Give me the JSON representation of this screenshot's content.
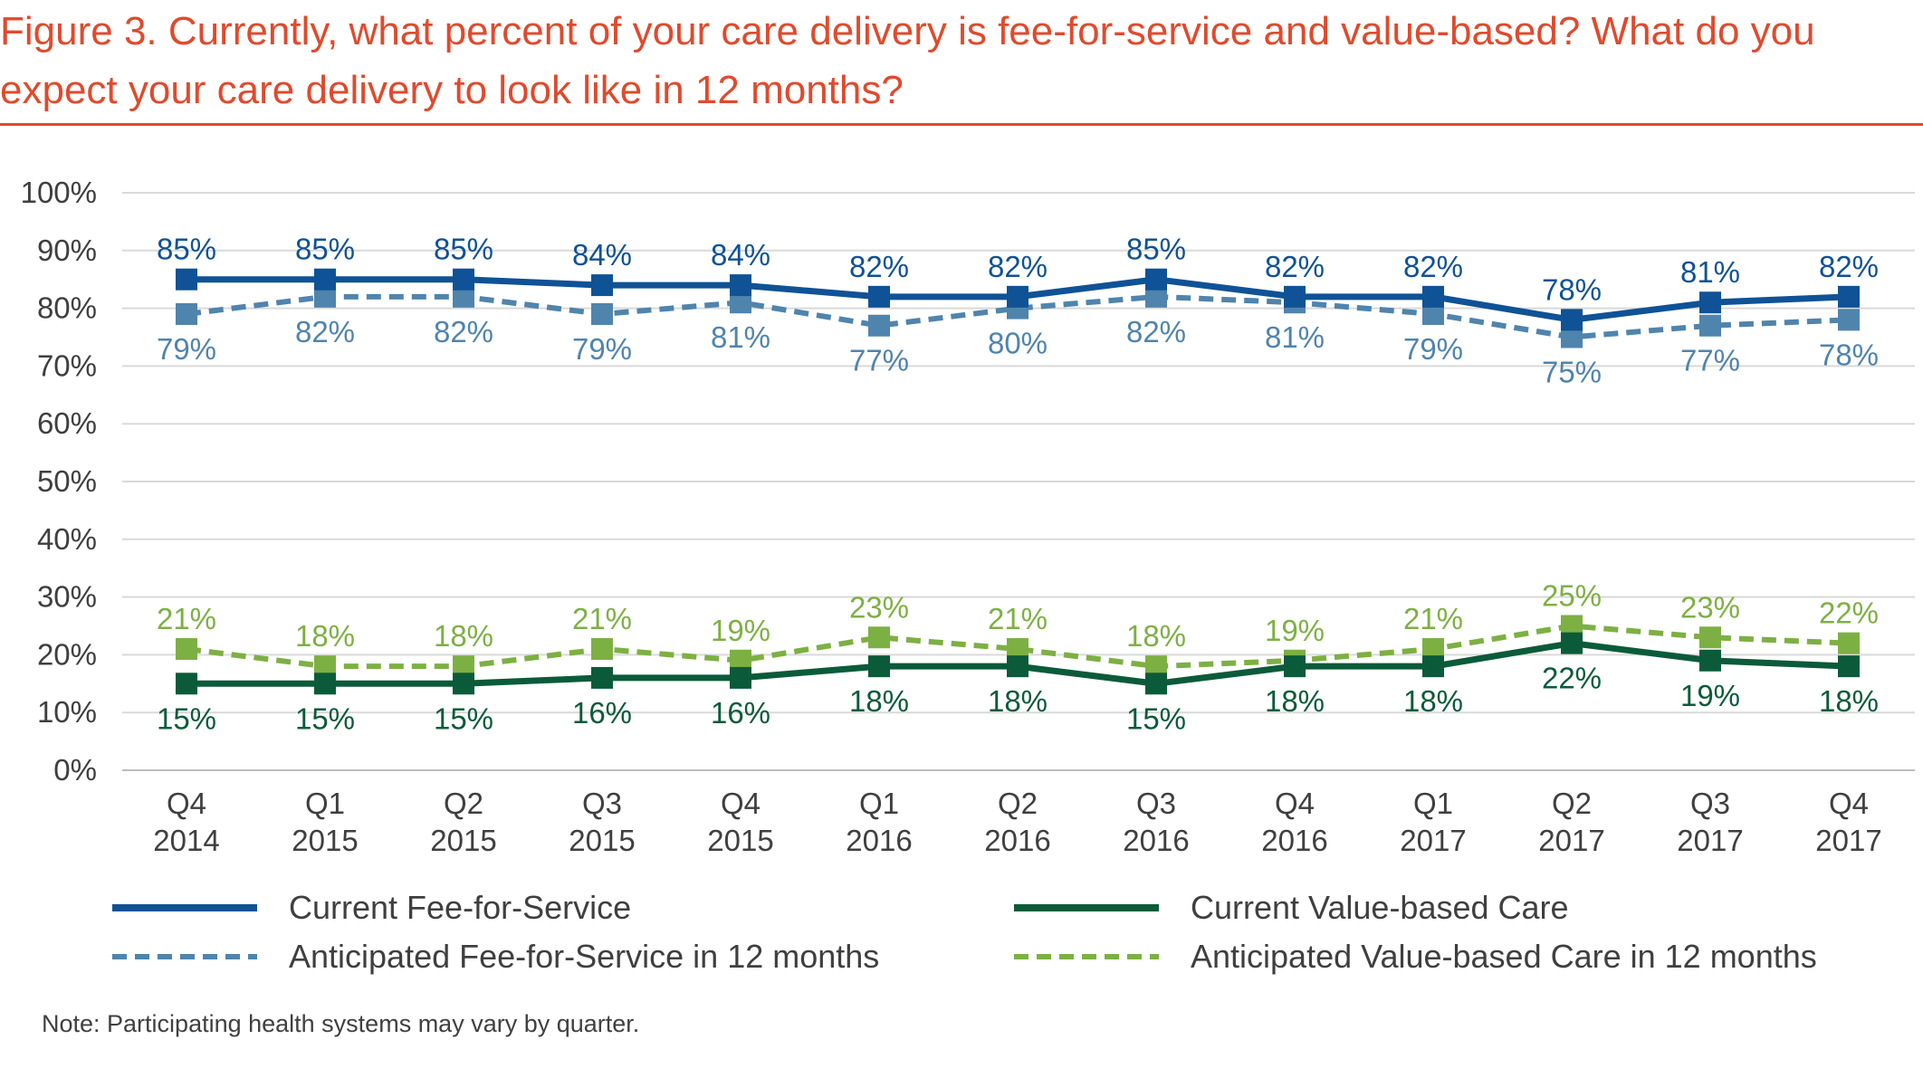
{
  "title": "Figure 3. Currently, what percent of your care delivery is fee-for-service and value-based? What do you expect your care delivery to look like in 12 months?",
  "note": "Note: Participating health systems may vary by quarter.",
  "colors": {
    "title": "#e04a2d",
    "current_ffs": "#0f5296",
    "anticipated_ffs": "#4f84ad",
    "current_vbc": "#0b5b3a",
    "anticipated_vbc": "#7db043"
  },
  "chart_data": {
    "type": "line",
    "title": "",
    "xlabel": "",
    "ylabel": "",
    "ylim": [
      0,
      100
    ],
    "y_ticks": [
      "0%",
      "10%",
      "20%",
      "30%",
      "40%",
      "50%",
      "60%",
      "70%",
      "80%",
      "90%",
      "100%"
    ],
    "grid": true,
    "legend_position": "bottom",
    "categories": [
      [
        "Q4",
        "2014"
      ],
      [
        "Q1",
        "2015"
      ],
      [
        "Q2",
        "2015"
      ],
      [
        "Q3",
        "2015"
      ],
      [
        "Q4",
        "2015"
      ],
      [
        "Q1",
        "2016"
      ],
      [
        "Q2",
        "2016"
      ],
      [
        "Q3",
        "2016"
      ],
      [
        "Q4",
        "2016"
      ],
      [
        "Q1",
        "2017"
      ],
      [
        "Q2",
        "2017"
      ],
      [
        "Q3",
        "2017"
      ],
      [
        "Q4",
        "2017"
      ]
    ],
    "series": [
      {
        "name": "Current Fee-for-Service",
        "key": "current_ffs",
        "style": "solid",
        "values": [
          85,
          85,
          85,
          84,
          84,
          82,
          82,
          85,
          82,
          82,
          78,
          81,
          82
        ],
        "labels": [
          "85%",
          "85%",
          "85%",
          "84%",
          "84%",
          "82%",
          "82%",
          "85%",
          "82%",
          "82%",
          "78%",
          "81%",
          "82%"
        ]
      },
      {
        "name": "Anticipated Fee-for-Service in 12 months",
        "key": "anticipated_ffs",
        "style": "dashed",
        "values": [
          79,
          82,
          82,
          79,
          81,
          77,
          80,
          82,
          81,
          79,
          75,
          77,
          78
        ],
        "labels": [
          "79%",
          "82%",
          "82%",
          "79%",
          "81%",
          "77%",
          "80%",
          "82%",
          "81%",
          "79%",
          "75%",
          "77%",
          "78%"
        ]
      },
      {
        "name": "Current Value-based Care",
        "key": "current_vbc",
        "style": "solid",
        "values": [
          15,
          15,
          15,
          16,
          16,
          18,
          18,
          15,
          18,
          18,
          22,
          19,
          18
        ],
        "labels": [
          "15%",
          "15%",
          "15%",
          "16%",
          "16%",
          "18%",
          "18%",
          "15%",
          "18%",
          "18%",
          "22%",
          "19%",
          "18%"
        ]
      },
      {
        "name": "Anticipated Value-based Care in 12 months",
        "key": "anticipated_vbc",
        "style": "dashed",
        "values": [
          21,
          18,
          18,
          21,
          19,
          23,
          21,
          18,
          19,
          21,
          25,
          23,
          22
        ],
        "labels": [
          "21%",
          "18%",
          "18%",
          "21%",
          "19%",
          "23%",
          "21%",
          "18%",
          "19%",
          "21%",
          "25%",
          "23%",
          "22%"
        ]
      }
    ]
  }
}
